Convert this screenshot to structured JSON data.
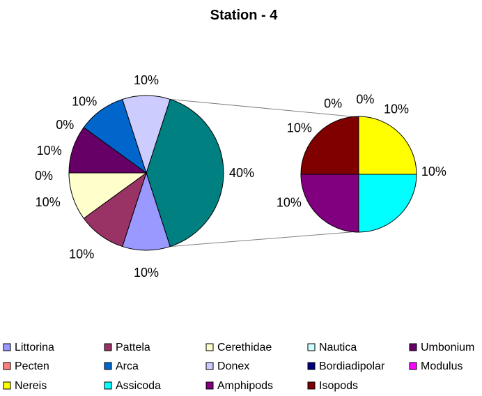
{
  "chart_data": {
    "type": "pie",
    "subtype": "pie-of-pie",
    "title": "Station - 4",
    "slices": [
      {
        "name": "Littorina",
        "value": 10,
        "label": "10%",
        "color": "#9999ff"
      },
      {
        "name": "Pattela",
        "value": 10,
        "label": "10%",
        "color": "#993366"
      },
      {
        "name": "Cerethidae",
        "value": 10,
        "label": "10%",
        "color": "#ffffcc"
      },
      {
        "name": "Nautica",
        "value": 0,
        "label": "0%",
        "color": "#ccffff"
      },
      {
        "name": "Umbonium",
        "value": 10,
        "label": "10%",
        "color": "#660066"
      },
      {
        "name": "Pecten",
        "value": 0,
        "label": "0%",
        "color": "#ff8080"
      },
      {
        "name": "Arca",
        "value": 10,
        "label": "10%",
        "color": "#0066cc"
      },
      {
        "name": "Donex",
        "value": 10,
        "label": "10%",
        "color": "#ccccff"
      },
      {
        "name": "Bordiadipolar",
        "value": 0,
        "label": "0%",
        "color": "#000080"
      },
      {
        "name": "Modulus",
        "value": 0,
        "label": "0%",
        "color": "#ff00ff"
      },
      {
        "name": "Nereis",
        "value": 10,
        "label": "10%",
        "color": "#ffff00"
      },
      {
        "name": "Assicoda",
        "value": 10,
        "label": "10%",
        "color": "#00ffff"
      },
      {
        "name": "Amphipods",
        "value": 10,
        "label": "10%",
        "color": "#800080"
      },
      {
        "name": "Isopods",
        "value": 10,
        "label": "10%",
        "color": "#800000"
      }
    ],
    "other_slice": {
      "value": 40,
      "label": "40%",
      "color": "#008080"
    },
    "secondary_series": [
      "Bordiadipolar",
      "Modulus",
      "Nereis",
      "Assicoda",
      "Amphipods",
      "Isopods"
    ],
    "legend_position": "bottom"
  }
}
